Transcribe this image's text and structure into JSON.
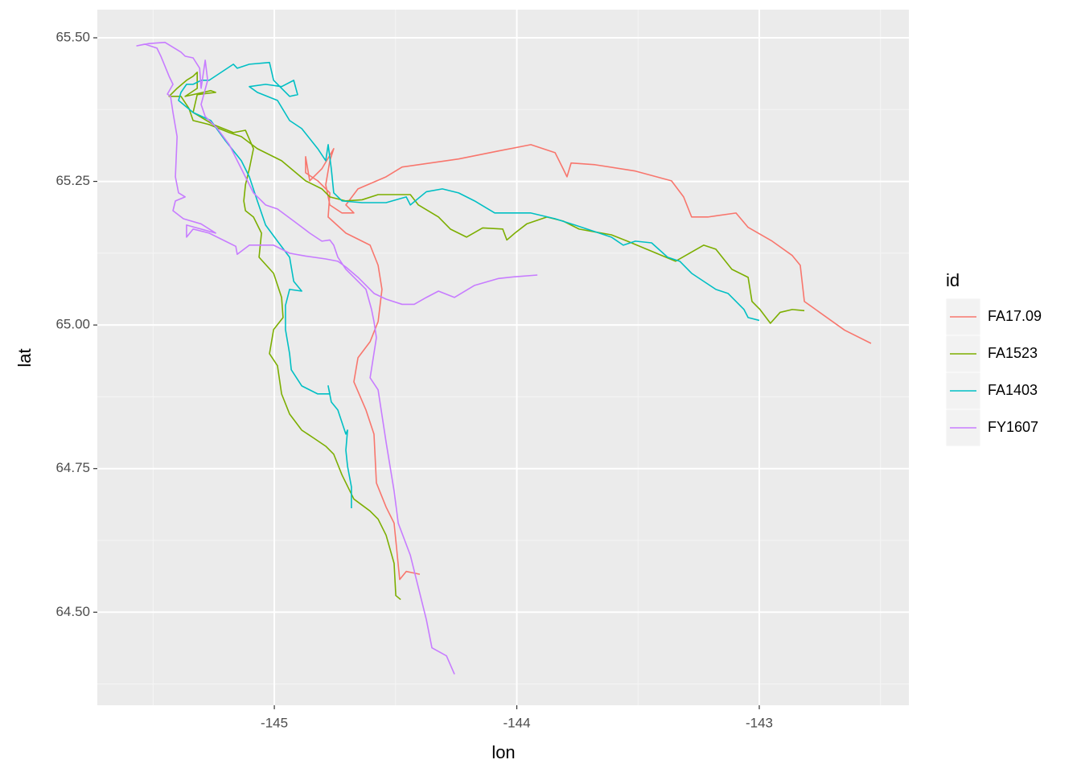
{
  "chart_data": {
    "type": "line",
    "x_label": "lon",
    "y_label": "lat",
    "legend_title": "id",
    "legend_position": "right",
    "grid": true,
    "xlim": [
      -145.73,
      -142.383
    ],
    "ylim": [
      64.338,
      65.549
    ],
    "xticks": [
      -145,
      -144,
      -143
    ],
    "yticks": [
      {
        "value": 64.5,
        "label": "64.50"
      },
      {
        "value": 64.75,
        "label": "64.75"
      },
      {
        "value": 65.0,
        "label": "65.00"
      },
      {
        "value": 65.25,
        "label": "65.25"
      },
      {
        "value": 65.5,
        "label": "65.50"
      }
    ],
    "x_minor_ticks": [
      -145.5,
      -144.5,
      -143.5,
      -142.5
    ],
    "y_minor_ticks": [
      64.375,
      64.625,
      64.875,
      65.125,
      65.375
    ],
    "series": [
      {
        "name": "FA17.09",
        "color": "#F8766D",
        "x": [
          -142.539,
          -142.648,
          -142.814,
          -142.831,
          -142.864,
          -142.947,
          -143.046,
          -143.096,
          -143.212,
          -143.279,
          -143.312,
          -143.362,
          -143.511,
          -143.677,
          -143.776,
          -143.793,
          -143.809,
          -143.842,
          -143.942,
          -144.075,
          -144.24,
          -144.473,
          -144.539,
          -144.655,
          -144.705,
          -144.672,
          -144.721,
          -144.771,
          -144.788,
          -144.771,
          -144.755,
          -144.804,
          -144.854,
          -144.871,
          -144.871,
          -144.821,
          -144.771,
          -144.778,
          -144.705,
          -144.605,
          -144.572,
          -144.556,
          -144.572,
          -144.605,
          -144.655,
          -144.672,
          -144.622,
          -144.589,
          -144.579,
          -144.539,
          -144.506,
          -144.483,
          -144.456,
          -144.4
        ],
        "y": [
          64.968,
          64.991,
          65.041,
          65.104,
          65.121,
          65.146,
          65.17,
          65.195,
          65.188,
          65.188,
          65.223,
          65.251,
          65.268,
          65.279,
          65.282,
          65.258,
          65.272,
          65.3,
          65.314,
          65.303,
          65.289,
          65.275,
          65.258,
          65.237,
          65.209,
          65.195,
          65.195,
          65.209,
          65.244,
          65.286,
          65.307,
          65.272,
          65.251,
          65.293,
          65.265,
          65.251,
          65.23,
          65.188,
          65.16,
          65.139,
          65.104,
          65.062,
          65.006,
          64.971,
          64.943,
          64.901,
          64.852,
          64.81,
          64.725,
          64.683,
          64.655,
          64.557,
          64.571,
          64.566
        ]
      },
      {
        "name": "FA1523",
        "color": "#7CAE00",
        "x": [
          -142.814,
          -142.864,
          -142.914,
          -142.954,
          -142.997,
          -143.03,
          -143.046,
          -143.113,
          -143.179,
          -143.229,
          -143.345,
          -143.544,
          -143.61,
          -143.677,
          -143.743,
          -143.809,
          -143.876,
          -143.959,
          -144.008,
          -144.041,
          -144.058,
          -144.141,
          -144.207,
          -144.274,
          -144.323,
          -144.406,
          -144.439,
          -144.572,
          -144.638,
          -144.705,
          -144.771,
          -144.804,
          -144.871,
          -144.97,
          -145.07,
          -145.136,
          -145.186,
          -145.269,
          -145.335,
          -145.352,
          -145.385,
          -145.434,
          -145.401,
          -145.362,
          -145.335,
          -145.318,
          -145.318,
          -145.368,
          -145.262,
          -145.242,
          -145.318,
          -145.335,
          -145.252,
          -145.169,
          -145.119,
          -145.086,
          -145.103,
          -145.119,
          -145.126,
          -145.119,
          -145.086,
          -145.053,
          -145.063,
          -145.003,
          -144.97,
          -144.964,
          -145.003,
          -145.02,
          -144.987,
          -144.97,
          -144.937,
          -144.887,
          -144.837,
          -144.788,
          -144.755,
          -144.721,
          -144.672,
          -144.605,
          -144.572,
          -144.539,
          -144.506,
          -144.499,
          -144.479
        ],
        "y": [
          65.025,
          65.027,
          65.022,
          65.003,
          65.027,
          65.041,
          65.083,
          65.097,
          65.132,
          65.139,
          65.111,
          65.146,
          65.157,
          65.162,
          65.167,
          65.181,
          65.188,
          65.176,
          65.16,
          65.148,
          65.167,
          65.169,
          65.153,
          65.167,
          65.188,
          65.209,
          65.227,
          65.227,
          65.218,
          65.216,
          65.223,
          65.237,
          65.251,
          65.286,
          65.307,
          65.328,
          65.335,
          65.349,
          65.356,
          65.377,
          65.398,
          65.398,
          65.412,
          65.426,
          65.433,
          65.44,
          65.412,
          65.398,
          65.408,
          65.405,
          65.401,
          65.37,
          65.349,
          65.335,
          65.339,
          65.307,
          65.272,
          65.244,
          65.216,
          65.199,
          65.188,
          65.16,
          65.118,
          65.09,
          65.048,
          65.013,
          64.992,
          64.95,
          64.929,
          64.88,
          64.845,
          64.817,
          64.803,
          64.789,
          64.775,
          64.739,
          64.697,
          64.676,
          64.662,
          64.634,
          64.585,
          64.529,
          64.522
        ]
      },
      {
        "name": "FA1403",
        "color": "#00BFC4",
        "x": [
          -143.0,
          -143.046,
          -143.063,
          -143.096,
          -143.129,
          -143.179,
          -143.229,
          -143.279,
          -143.328,
          -143.378,
          -143.444,
          -143.511,
          -143.561,
          -143.61,
          -143.66,
          -143.76,
          -143.842,
          -143.942,
          -144.091,
          -144.174,
          -144.24,
          -144.307,
          -144.373,
          -144.439,
          -144.456,
          -144.539,
          -144.638,
          -144.721,
          -144.755,
          -144.765,
          -144.778,
          -144.788,
          -144.821,
          -144.887,
          -144.937,
          -144.987,
          -145.07,
          -145.103,
          -145.036,
          -144.97,
          -144.92,
          -144.904,
          -144.937,
          -145.003,
          -145.02,
          -145.103,
          -145.153,
          -145.169,
          -145.269,
          -145.302,
          -145.335,
          -145.362,
          -145.385,
          -145.395,
          -145.335,
          -145.262,
          -145.202,
          -145.136,
          -145.103,
          -145.07,
          -145.036,
          -144.987,
          -144.937,
          -144.92,
          -144.887,
          -144.937,
          -144.954,
          -144.954,
          -144.937,
          -144.93,
          -144.887,
          -144.821,
          -144.771,
          -144.778,
          -144.765,
          -144.738,
          -144.705,
          -144.698,
          -144.705,
          -144.698,
          -144.682,
          -144.682
        ],
        "y": [
          65.008,
          65.013,
          65.027,
          65.041,
          65.055,
          65.062,
          65.076,
          65.09,
          65.111,
          65.118,
          65.143,
          65.146,
          65.139,
          65.153,
          65.16,
          65.174,
          65.185,
          65.195,
          65.195,
          65.216,
          65.23,
          65.237,
          65.232,
          65.209,
          65.223,
          65.213,
          65.213,
          65.216,
          65.23,
          65.272,
          65.314,
          65.286,
          65.307,
          65.342,
          65.356,
          65.391,
          65.405,
          65.415,
          65.419,
          65.415,
          65.426,
          65.401,
          65.398,
          65.426,
          65.457,
          65.454,
          65.447,
          65.454,
          65.426,
          65.426,
          65.419,
          65.419,
          65.405,
          65.391,
          65.37,
          65.356,
          65.321,
          65.286,
          65.258,
          65.216,
          65.174,
          65.146,
          65.118,
          65.076,
          65.059,
          65.062,
          65.034,
          64.992,
          64.95,
          64.922,
          64.894,
          64.88,
          64.88,
          64.894,
          64.866,
          64.852,
          64.81,
          64.817,
          64.782,
          64.754,
          64.718,
          64.681
        ]
      },
      {
        "name": "FY1607",
        "color": "#C77CFF",
        "x": [
          -143.915,
          -144.008,
          -144.075,
          -144.174,
          -144.257,
          -144.323,
          -144.373,
          -144.423,
          -144.473,
          -144.539,
          -144.589,
          -144.622,
          -144.655,
          -144.705,
          -144.738,
          -144.788,
          -144.871,
          -144.937,
          -145.003,
          -145.103,
          -145.153,
          -145.159,
          -145.202,
          -145.269,
          -145.335,
          -145.362,
          -145.362,
          -145.302,
          -145.242,
          -145.302,
          -145.375,
          -145.418,
          -145.408,
          -145.368,
          -145.395,
          -145.408,
          -145.401,
          -145.418,
          -145.428,
          -145.441,
          -145.418,
          -145.434,
          -145.468,
          -145.484,
          -145.534,
          -145.567,
          -145.517,
          -145.451,
          -145.385,
          -145.368,
          -145.335,
          -145.308,
          -145.302,
          -145.285,
          -145.275,
          -145.302,
          -145.285,
          -145.235,
          -145.186,
          -145.136,
          -145.086,
          -145.036,
          -144.987,
          -144.92,
          -144.854,
          -144.804,
          -144.771,
          -144.755,
          -144.738,
          -144.705,
          -144.655,
          -144.622,
          -144.599,
          -144.589,
          -144.579,
          -144.605,
          -144.572,
          -144.539,
          -144.506,
          -144.489,
          -144.439,
          -144.406,
          -144.373,
          -144.35,
          -144.29,
          -144.257
        ],
        "y": [
          65.087,
          65.084,
          65.081,
          65.069,
          65.048,
          65.059,
          65.048,
          65.036,
          65.036,
          65.045,
          65.055,
          65.069,
          65.083,
          65.101,
          65.111,
          65.115,
          65.12,
          65.125,
          65.139,
          65.139,
          65.123,
          65.137,
          65.146,
          65.16,
          65.167,
          65.153,
          65.174,
          65.167,
          65.16,
          65.176,
          65.185,
          65.199,
          65.216,
          65.223,
          65.23,
          65.258,
          65.328,
          65.37,
          65.398,
          65.402,
          65.419,
          65.433,
          65.468,
          65.482,
          65.489,
          65.486,
          65.49,
          65.492,
          65.475,
          65.468,
          65.465,
          65.447,
          65.412,
          65.461,
          65.426,
          65.384,
          65.363,
          65.342,
          65.314,
          65.272,
          65.23,
          65.209,
          65.202,
          65.181,
          65.16,
          65.146,
          65.148,
          65.139,
          65.118,
          65.097,
          65.076,
          65.062,
          65.027,
          65.006,
          64.978,
          64.908,
          64.887,
          64.796,
          64.711,
          64.655,
          64.599,
          64.543,
          64.487,
          64.438,
          64.424,
          64.392
        ]
      }
    ]
  }
}
